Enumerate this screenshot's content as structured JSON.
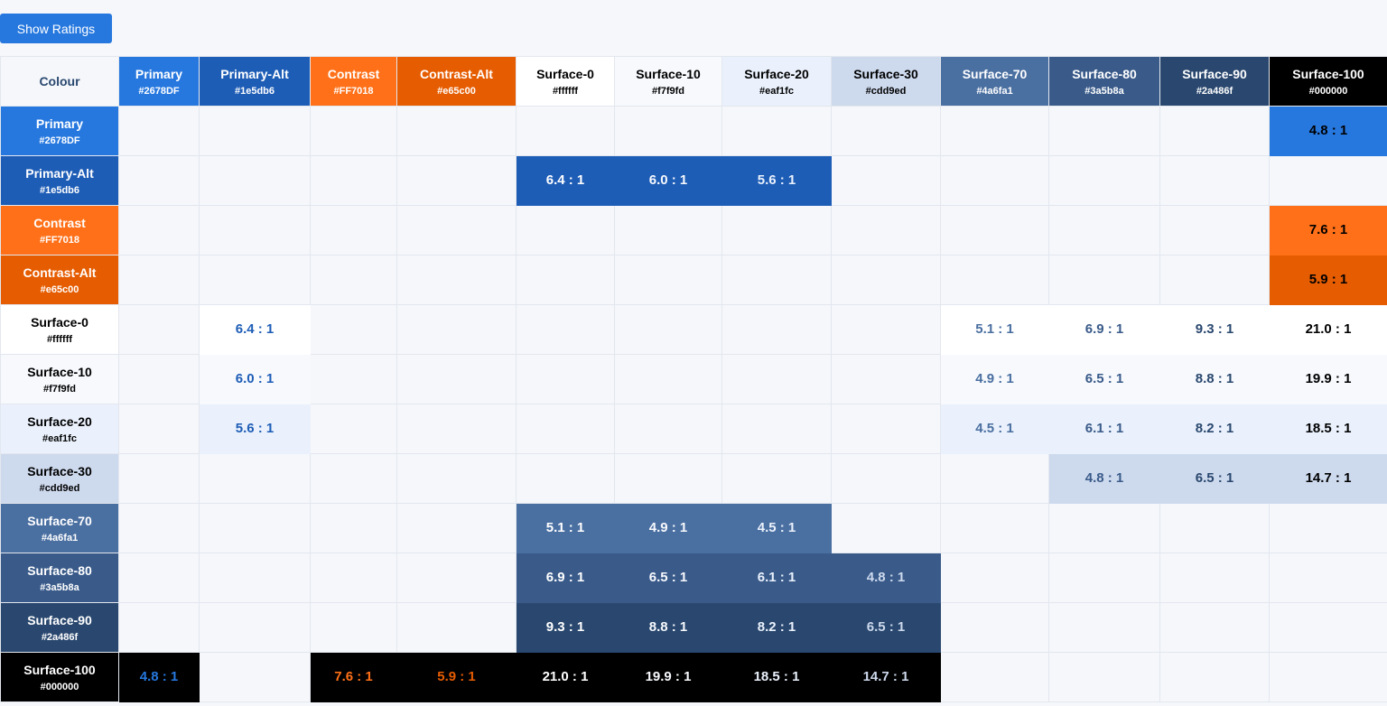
{
  "button": "Show Ratings",
  "header": "Colour",
  "colours": [
    {
      "name": "Primary",
      "hex": "#2678DF"
    },
    {
      "name": "Primary-Alt",
      "hex": "#1e5db6"
    },
    {
      "name": "Contrast",
      "hex": "#FF7018"
    },
    {
      "name": "Contrast-Alt",
      "hex": "#e65c00"
    },
    {
      "name": "Surface-0",
      "hex": "#ffffff"
    },
    {
      "name": "Surface-10",
      "hex": "#f7f9fd"
    },
    {
      "name": "Surface-20",
      "hex": "#eaf1fc"
    },
    {
      "name": "Surface-30",
      "hex": "#cdd9ed"
    },
    {
      "name": "Surface-70",
      "hex": "#4a6fa1"
    },
    {
      "name": "Surface-80",
      "hex": "#3a5b8a"
    },
    {
      "name": "Surface-90",
      "hex": "#2a486f"
    },
    {
      "name": "Surface-100",
      "hex": "#000000"
    }
  ],
  "matrix": [
    [
      null,
      null,
      null,
      null,
      null,
      null,
      null,
      null,
      null,
      null,
      null,
      "4.8 : 1"
    ],
    [
      null,
      null,
      null,
      null,
      "6.4 : 1",
      "6.0 : 1",
      "5.6 : 1",
      null,
      null,
      null,
      null,
      null
    ],
    [
      null,
      null,
      null,
      null,
      null,
      null,
      null,
      null,
      null,
      null,
      null,
      "7.6 : 1"
    ],
    [
      null,
      null,
      null,
      null,
      null,
      null,
      null,
      null,
      null,
      null,
      null,
      "5.9 : 1"
    ],
    [
      null,
      "6.4 : 1",
      null,
      null,
      null,
      null,
      null,
      null,
      "5.1 : 1",
      "6.9 : 1",
      "9.3 : 1",
      "21.0 : 1"
    ],
    [
      null,
      "6.0 : 1",
      null,
      null,
      null,
      null,
      null,
      null,
      "4.9 : 1",
      "6.5 : 1",
      "8.8 : 1",
      "19.9 : 1"
    ],
    [
      null,
      "5.6 : 1",
      null,
      null,
      null,
      null,
      null,
      null,
      "4.5 : 1",
      "6.1 : 1",
      "8.2 : 1",
      "18.5 : 1"
    ],
    [
      null,
      null,
      null,
      null,
      null,
      null,
      null,
      null,
      null,
      "4.8 : 1",
      "6.5 : 1",
      "14.7 : 1"
    ],
    [
      null,
      null,
      null,
      null,
      "5.1 : 1",
      "4.9 : 1",
      "4.5 : 1",
      null,
      null,
      null,
      null,
      null
    ],
    [
      null,
      null,
      null,
      null,
      "6.9 : 1",
      "6.5 : 1",
      "6.1 : 1",
      "4.8 : 1",
      null,
      null,
      null,
      null
    ],
    [
      null,
      null,
      null,
      null,
      "9.3 : 1",
      "8.8 : 1",
      "8.2 : 1",
      "6.5 : 1",
      null,
      null,
      null,
      null
    ],
    [
      "4.8 : 1",
      null,
      "7.6 : 1",
      "5.9 : 1",
      "21.0 : 1",
      "19.9 : 1",
      "18.5 : 1",
      "14.7 : 1",
      null,
      null,
      null,
      null
    ]
  ]
}
